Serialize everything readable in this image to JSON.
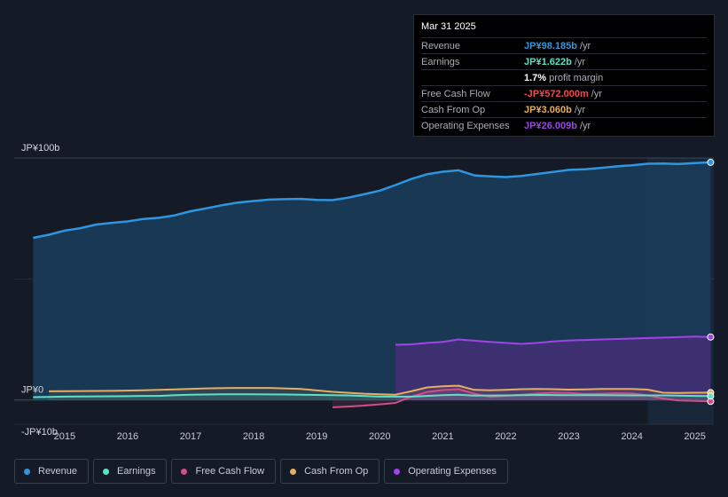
{
  "chart_data": {
    "type": "area",
    "y_labels": [
      "JP¥100b",
      "JP¥0",
      "-JP¥10b"
    ],
    "ylim": [
      -10,
      100
    ],
    "xlim": [
      2014.2,
      2025.3
    ],
    "x_ticks": [
      2015,
      2016,
      2017,
      2018,
      2019,
      2020,
      2021,
      2022,
      2023,
      2024,
      2025
    ],
    "x_tick_labels": [
      "2015",
      "2016",
      "2017",
      "2018",
      "2019",
      "2020",
      "2021",
      "2022",
      "2023",
      "2024",
      "2025"
    ],
    "highlight_range": [
      2024.25,
      2025.25
    ],
    "series": [
      {
        "key": "revenue",
        "name": "Revenue",
        "color": "#2f95e0",
        "x": [
          2014.5,
          2014.75,
          2015.0,
          2015.25,
          2015.5,
          2015.75,
          2016.0,
          2016.25,
          2016.5,
          2016.75,
          2017.0,
          2017.25,
          2017.5,
          2017.75,
          2018.0,
          2018.25,
          2018.5,
          2018.75,
          2019.0,
          2019.25,
          2019.5,
          2019.75,
          2020.0,
          2020.25,
          2020.5,
          2020.75,
          2021.0,
          2021.25,
          2021.5,
          2021.75,
          2022.0,
          2022.25,
          2022.5,
          2022.75,
          2023.0,
          2023.25,
          2023.5,
          2023.75,
          2024.0,
          2024.25,
          2024.5,
          2024.75,
          2025.0,
          2025.25
        ],
        "values": [
          67.0,
          68.3,
          70.0,
          71.0,
          72.5,
          73.2,
          73.8,
          74.8,
          75.3,
          76.3,
          78.0,
          79.2,
          80.5,
          81.6,
          82.2,
          82.8,
          83.0,
          83.1,
          82.7,
          82.6,
          83.6,
          85.0,
          86.5,
          88.8,
          91.3,
          93.3,
          94.3,
          94.9,
          92.8,
          92.4,
          92.1,
          92.6,
          93.4,
          94.2,
          95.1,
          95.3,
          95.9,
          96.5,
          97.0,
          97.6,
          97.7,
          97.5,
          97.9,
          98.185
        ]
      },
      {
        "key": "opex",
        "name": "Operating Expenses",
        "color": "#a044e8",
        "x": [
          2020.25,
          2020.5,
          2020.75,
          2021.0,
          2021.25,
          2021.5,
          2021.75,
          2022.0,
          2022.25,
          2022.5,
          2022.75,
          2023.0,
          2023.25,
          2023.5,
          2023.75,
          2024.0,
          2024.25,
          2024.5,
          2024.75,
          2025.0,
          2025.25
        ],
        "values": [
          22.8,
          23.0,
          23.6,
          24.0,
          25.0,
          24.5,
          24.0,
          23.6,
          23.2,
          23.6,
          24.2,
          24.6,
          24.8,
          25.0,
          25.2,
          25.4,
          25.6,
          25.8,
          26.0,
          26.2,
          26.009
        ]
      },
      {
        "key": "cfo",
        "name": "Cash From Op",
        "color": "#e7ad60",
        "x": [
          2014.75,
          2015.25,
          2015.75,
          2016.25,
          2016.75,
          2017.25,
          2017.75,
          2018.25,
          2018.75,
          2019.25,
          2019.75,
          2020.0,
          2020.25,
          2020.5,
          2020.75,
          2021.0,
          2021.25,
          2021.5,
          2021.75,
          2022.0,
          2022.25,
          2022.5,
          2022.75,
          2023.0,
          2023.25,
          2023.5,
          2023.75,
          2024.0,
          2024.25,
          2024.5,
          2024.75,
          2025.0,
          2025.25
        ],
        "values": [
          3.6,
          3.7,
          3.8,
          4.0,
          4.4,
          4.8,
          5.0,
          5.0,
          4.6,
          3.4,
          2.6,
          2.4,
          2.2,
          3.6,
          5.2,
          5.7,
          5.9,
          4.2,
          4.0,
          4.2,
          4.5,
          4.6,
          4.5,
          4.3,
          4.4,
          4.6,
          4.6,
          4.6,
          4.3,
          3.0,
          2.9,
          3.0,
          3.06
        ]
      },
      {
        "key": "fcf",
        "name": "Free Cash Flow",
        "color": "#cf4f86",
        "x": [
          2019.25,
          2019.5,
          2019.75,
          2020.0,
          2020.25,
          2020.5,
          2020.75,
          2021.0,
          2021.25,
          2021.5,
          2021.75,
          2022.0,
          2022.25,
          2022.5,
          2022.75,
          2023.0,
          2023.25,
          2023.5,
          2023.75,
          2024.0,
          2024.25,
          2024.5,
          2024.75,
          2025.0,
          2025.25
        ],
        "values": [
          -3.0,
          -2.7,
          -2.3,
          -1.8,
          -1.2,
          1.4,
          3.3,
          4.1,
          4.5,
          2.6,
          1.3,
          1.7,
          2.2,
          2.7,
          3.0,
          2.9,
          2.5,
          2.6,
          2.8,
          2.7,
          1.9,
          0.6,
          -0.2,
          -0.4,
          -0.572
        ]
      },
      {
        "key": "earnings",
        "name": "Earnings",
        "color": "#5ee0c6",
        "x": [
          2014.5,
          2014.75,
          2015.0,
          2015.5,
          2016.0,
          2016.25,
          2016.5,
          2016.75,
          2017.0,
          2017.25,
          2017.5,
          2018.0,
          2018.5,
          2019.0,
          2019.5,
          2020.0,
          2020.5,
          2021.0,
          2021.25,
          2021.5,
          2022.0,
          2022.5,
          2023.0,
          2023.5,
          2024.0,
          2024.5,
          2025.0,
          2025.25
        ],
        "values": [
          1.2,
          1.3,
          1.4,
          1.5,
          1.6,
          1.7,
          1.7,
          2.0,
          2.2,
          2.3,
          2.4,
          2.4,
          2.3,
          2.1,
          1.9,
          1.4,
          1.4,
          2.0,
          2.2,
          1.8,
          1.9,
          2.1,
          2.0,
          2.0,
          1.9,
          1.9,
          1.7,
          1.622
        ]
      }
    ],
    "tooltip": {
      "date": "Mar 31 2025",
      "rows": [
        {
          "label": "Revenue",
          "value": "JP¥98.185b",
          "unit": "/yr",
          "color": "#2f95e0"
        },
        {
          "label": "Earnings",
          "value": "JP¥1.622b",
          "unit": "/yr",
          "color": "#5ee0c6"
        },
        {
          "label": "",
          "value": "1.7%",
          "unit": "profit margin",
          "color": "#ffffff"
        },
        {
          "label": "Free Cash Flow",
          "value": "-JP¥572.000m",
          "unit": "/yr",
          "color": "#f0494d"
        },
        {
          "label": "Cash From Op",
          "value": "JP¥3.060b",
          "unit": "/yr",
          "color": "#e7ad60"
        },
        {
          "label": "Operating Expenses",
          "value": "JP¥26.009b",
          "unit": "/yr",
          "color": "#a044e8"
        }
      ]
    },
    "legend": [
      {
        "name": "Revenue",
        "color": "#2f95e0"
      },
      {
        "name": "Earnings",
        "color": "#5ee0c6"
      },
      {
        "name": "Free Cash Flow",
        "color": "#cf4f86"
      },
      {
        "name": "Cash From Op",
        "color": "#e7ad60"
      },
      {
        "name": "Operating Expenses",
        "color": "#a044e8"
      }
    ]
  }
}
